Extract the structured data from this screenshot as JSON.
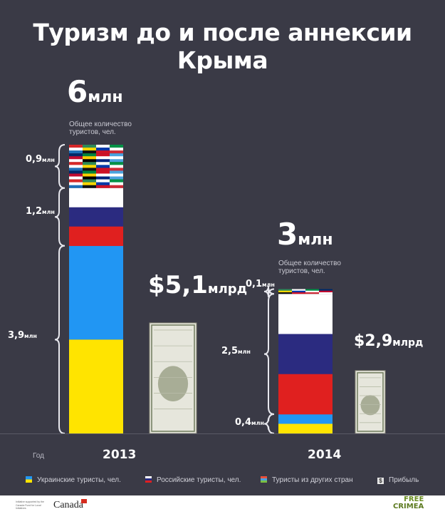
{
  "title": "Туризм до и после аннексии Крыма",
  "chart_data": {
    "type": "bar",
    "stacked": true,
    "year_label": "Год",
    "years": [
      "2013",
      "2014"
    ],
    "totals": [
      {
        "num": "6",
        "unit": "млн",
        "sub": "Общее количество туристов, чел."
      },
      {
        "num": "3",
        "unit": "млн",
        "sub": "Общее количество туристов, чел."
      }
    ],
    "series": [
      {
        "name": "Украинские туристы, чел.",
        "values": [
          3.9,
          0.4
        ],
        "labels": [
          "3,9",
          "0,4"
        ],
        "colors": [
          "#2196f3",
          "#ffe400"
        ]
      },
      {
        "name": "Российские туристы, чел.",
        "values": [
          1.2,
          2.5
        ],
        "labels": [
          "1,2",
          "2,5"
        ],
        "colors": [
          "#ffffff",
          "#2b2b80",
          "#e0201f"
        ]
      },
      {
        "name": "Туристы из других стран",
        "values": [
          0.9,
          0.1
        ],
        "labels": [
          "0,9",
          "0,1"
        ]
      }
    ],
    "label_unit": "млн",
    "revenue": {
      "name": "Прибыль",
      "values": [
        5.1,
        2.9
      ],
      "labels": [
        "$5,1",
        "$2,9"
      ],
      "unit": "млрд"
    }
  },
  "legend": {
    "ua": "Украинские туристы, чел.",
    "ru": "Российские туристы, чел.",
    "other": "Туристы из других стран",
    "profit": "Прибыль",
    "profit_symbol": "$"
  },
  "footer": {
    "canada": "Canada",
    "brand_line1": "FREE",
    "brand_line2": "CRIMEA",
    "note": "Initiative supported by the Canada Fund for Local Initiatives"
  }
}
